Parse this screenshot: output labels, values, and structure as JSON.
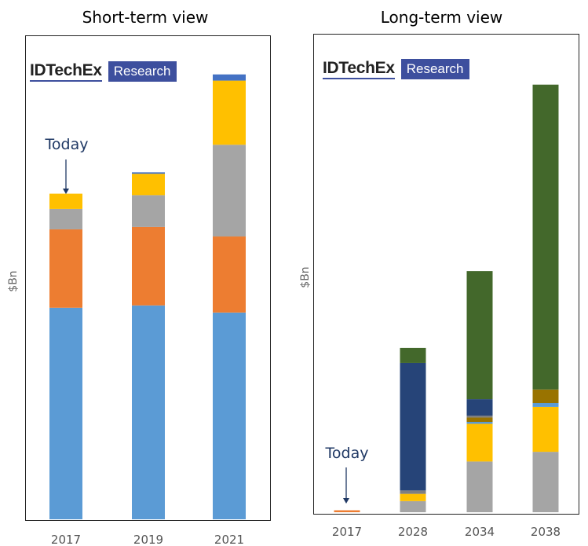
{
  "chart_data": [
    {
      "type": "bar",
      "stacked": true,
      "title": "Short-term view",
      "ylabel": "$Bn",
      "xlabel": "",
      "categories": [
        "2017",
        "2019",
        "2021"
      ],
      "ylim": [
        0,
        100
      ],
      "annotation": {
        "text": "Today",
        "category": "2017"
      },
      "series": [
        {
          "color": "#5b9bd5",
          "values": [
            44.5,
            45.0,
            43.5
          ]
        },
        {
          "color": "#ed7d31",
          "values": [
            16.5,
            16.5,
            16.0
          ]
        },
        {
          "color": "#a5a5a5",
          "values": [
            4.3,
            6.7,
            19.3
          ]
        },
        {
          "color": "#ffc000",
          "values": [
            3.2,
            4.5,
            13.5
          ]
        },
        {
          "color": "#4472c4",
          "values": [
            0.0,
            0.3,
            1.3
          ]
        }
      ]
    },
    {
      "type": "bar",
      "stacked": true,
      "title": "Long-term view",
      "ylabel": "$Bn",
      "xlabel": "",
      "categories": [
        "2017",
        "2028",
        "2034",
        "2038"
      ],
      "ylim": [
        0,
        100
      ],
      "annotation": {
        "text": "Today",
        "category": "2017"
      },
      "series": [
        {
          "color": "#ed7d31",
          "values": [
            0.4,
            0.0,
            0.0,
            0.0
          ]
        },
        {
          "color": "#a5a5a5",
          "values": [
            0.0,
            2.3,
            10.5,
            12.5
          ]
        },
        {
          "color": "#ffc000",
          "values": [
            0.0,
            1.5,
            7.8,
            9.3
          ]
        },
        {
          "color": "#5b9bd5",
          "values": [
            0.0,
            0.0,
            0.4,
            0.8
          ]
        },
        {
          "color": "#997300",
          "values": [
            0.0,
            0.0,
            0.9,
            2.8
          ]
        },
        {
          "color": "#7f7f7f",
          "values": [
            0.0,
            0.7,
            0.4,
            0.0
          ]
        },
        {
          "color": "#264478",
          "values": [
            0.0,
            26.4,
            3.4,
            0.0
          ]
        },
        {
          "color": "#43682b",
          "values": [
            0.0,
            3.1,
            26.5,
            63.1
          ]
        }
      ]
    }
  ],
  "logos": [
    {
      "main": "IDTechEx",
      "tag": "Research"
    },
    {
      "main": "IDTechEx",
      "tag": "Research"
    }
  ]
}
